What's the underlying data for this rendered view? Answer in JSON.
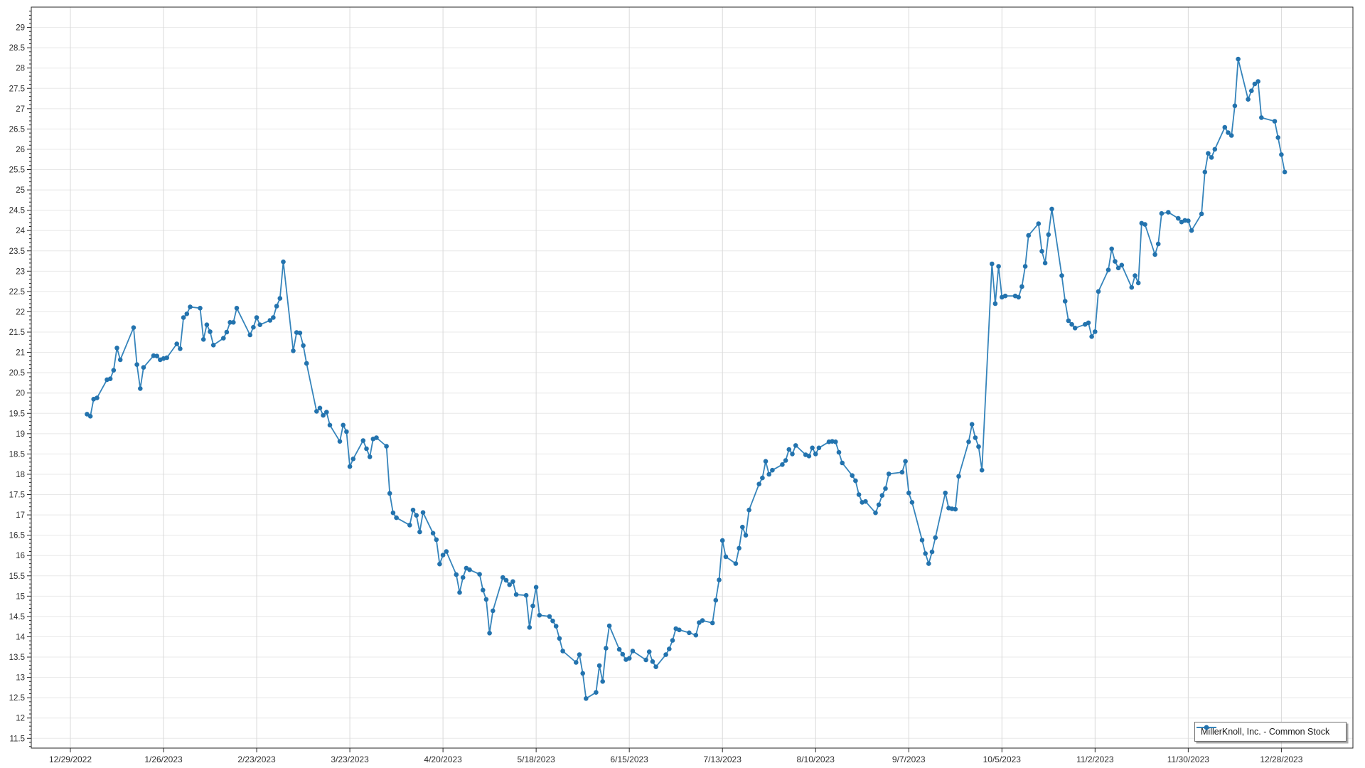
{
  "legend": {
    "label": "MillerKnoll, Inc. - Common Stock"
  },
  "colors": {
    "line": "#3584bb",
    "marker": "#2373ae",
    "grid_h": "#e8e8e8",
    "grid_v": "#d9d9d9",
    "axis": "#262626",
    "label": "#2e2e2e",
    "background": "#ffffff",
    "legend_border": "#6e6e6e"
  },
  "chart_data": {
    "type": "line",
    "title": "",
    "xlabel": "",
    "ylabel": "",
    "grid": true,
    "legend_position": "bottom-right",
    "marker": "circle",
    "y_axis": {
      "min": 11.26,
      "max": 29.5,
      "tick_start": 11.5,
      "tick_end": 29,
      "tick_step": 0.5,
      "minor_step": 0.1
    },
    "x_axis": {
      "min_date": "2022-12-17",
      "max_date": "2024-01-18"
    },
    "x_ticks": [
      {
        "label": "12/29/2022",
        "date": "2022-12-29"
      },
      {
        "label": "1/26/2023",
        "date": "2023-01-26"
      },
      {
        "label": "2/23/2023",
        "date": "2023-02-23"
      },
      {
        "label": "3/23/2023",
        "date": "2023-03-23"
      },
      {
        "label": "4/20/2023",
        "date": "2023-04-20"
      },
      {
        "label": "5/18/2023",
        "date": "2023-05-18"
      },
      {
        "label": "6/15/2023",
        "date": "2023-06-15"
      },
      {
        "label": "7/13/2023",
        "date": "2023-07-13"
      },
      {
        "label": "8/10/2023",
        "date": "2023-08-10"
      },
      {
        "label": "9/7/2023",
        "date": "2023-09-07"
      },
      {
        "label": "10/5/2023",
        "date": "2023-10-05"
      },
      {
        "label": "11/2/2023",
        "date": "2023-11-02"
      },
      {
        "label": "11/30/2023",
        "date": "2023-11-30"
      },
      {
        "label": "12/28/2023",
        "date": "2023-12-28"
      }
    ],
    "series": [
      {
        "name": "MillerKnoll, Inc. - Common Stock",
        "start_date": "2023-01-03",
        "frequency": "trading-daily",
        "market_holidays": [
          "2023-01-16",
          "2023-02-20",
          "2023-04-07",
          "2023-05-29",
          "2023-06-19",
          "2023-07-04",
          "2023-09-04",
          "2023-11-23",
          "2023-12-25"
        ],
        "values": [
          19.48,
          19.43,
          19.85,
          19.88,
          20.33,
          20.35,
          20.56,
          21.11,
          20.82,
          21.61,
          20.7,
          20.11,
          20.63,
          20.92,
          20.91,
          20.82,
          20.85,
          20.87,
          21.21,
          21.09,
          21.86,
          21.95,
          22.12,
          22.09,
          21.32,
          21.68,
          21.51,
          21.18,
          21.35,
          21.5,
          21.74,
          21.74,
          22.09,
          21.43,
          21.62,
          21.86,
          21.68,
          21.79,
          21.86,
          22.14,
          22.33,
          23.23,
          21.04,
          21.49,
          21.48,
          21.17,
          20.73,
          19.55,
          19.63,
          19.45,
          19.53,
          19.21,
          18.81,
          19.21,
          19.05,
          18.19,
          18.38,
          18.83,
          18.63,
          18.43,
          18.87,
          18.9,
          18.69,
          17.53,
          17.05,
          16.93,
          16.75,
          17.12,
          16.99,
          16.58,
          17.06,
          16.55,
          16.39,
          15.79,
          16.01,
          16.1,
          15.53,
          15.09,
          15.46,
          15.69,
          15.65,
          15.54,
          15.15,
          14.92,
          14.09,
          14.64,
          15.46,
          15.39,
          15.28,
          15.36,
          15.04,
          15.02,
          14.23,
          14.76,
          15.22,
          14.53,
          14.5,
          14.39,
          14.26,
          13.96,
          13.65,
          13.37,
          13.56,
          13.1,
          12.48,
          12.63,
          13.29,
          12.9,
          13.72,
          14.27,
          13.69,
          13.57,
          13.44,
          13.47,
          13.65,
          13.43,
          13.63,
          13.39,
          13.26,
          13.56,
          13.7,
          13.91,
          14.2,
          14.17,
          14.1,
          14.04,
          14.35,
          14.4,
          14.34,
          14.9,
          15.4,
          16.37,
          15.97,
          15.8,
          16.18,
          16.7,
          16.5,
          17.12,
          17.76,
          17.91,
          18.32,
          18.0,
          18.1,
          18.24,
          18.34,
          18.61,
          18.5,
          18.71,
          18.48,
          18.45,
          18.65,
          18.5,
          18.65,
          18.8,
          18.81,
          18.8,
          18.54,
          18.28,
          17.97,
          17.84,
          17.5,
          17.31,
          17.33,
          17.05,
          17.25,
          17.48,
          17.65,
          18.01,
          18.05,
          18.32,
          17.54,
          17.31,
          16.38,
          16.05,
          15.8,
          16.09,
          16.44,
          17.54,
          17.17,
          17.15,
          17.14,
          17.95,
          18.8,
          19.23,
          18.9,
          18.68,
          18.1,
          23.18,
          22.2,
          23.12,
          22.36,
          22.39,
          22.39,
          22.36,
          22.62,
          23.12,
          23.88,
          24.17,
          23.49,
          23.2,
          23.9,
          24.53,
          22.89,
          22.26,
          21.78,
          21.69,
          21.6,
          21.69,
          21.73,
          21.39,
          21.51,
          22.5,
          23.03,
          23.55,
          23.24,
          23.08,
          23.15,
          22.6,
          22.89,
          22.71,
          24.18,
          24.15,
          23.41,
          23.67,
          24.42,
          24.45,
          24.3,
          24.21,
          24.25,
          24.24,
          24.0,
          24.41,
          25.44,
          25.9,
          25.8,
          26.0,
          26.54,
          26.41,
          26.34,
          27.07,
          28.22,
          27.23,
          27.44,
          27.61,
          27.67,
          26.78,
          26.69,
          26.29,
          25.87,
          25.44
        ]
      }
    ]
  }
}
